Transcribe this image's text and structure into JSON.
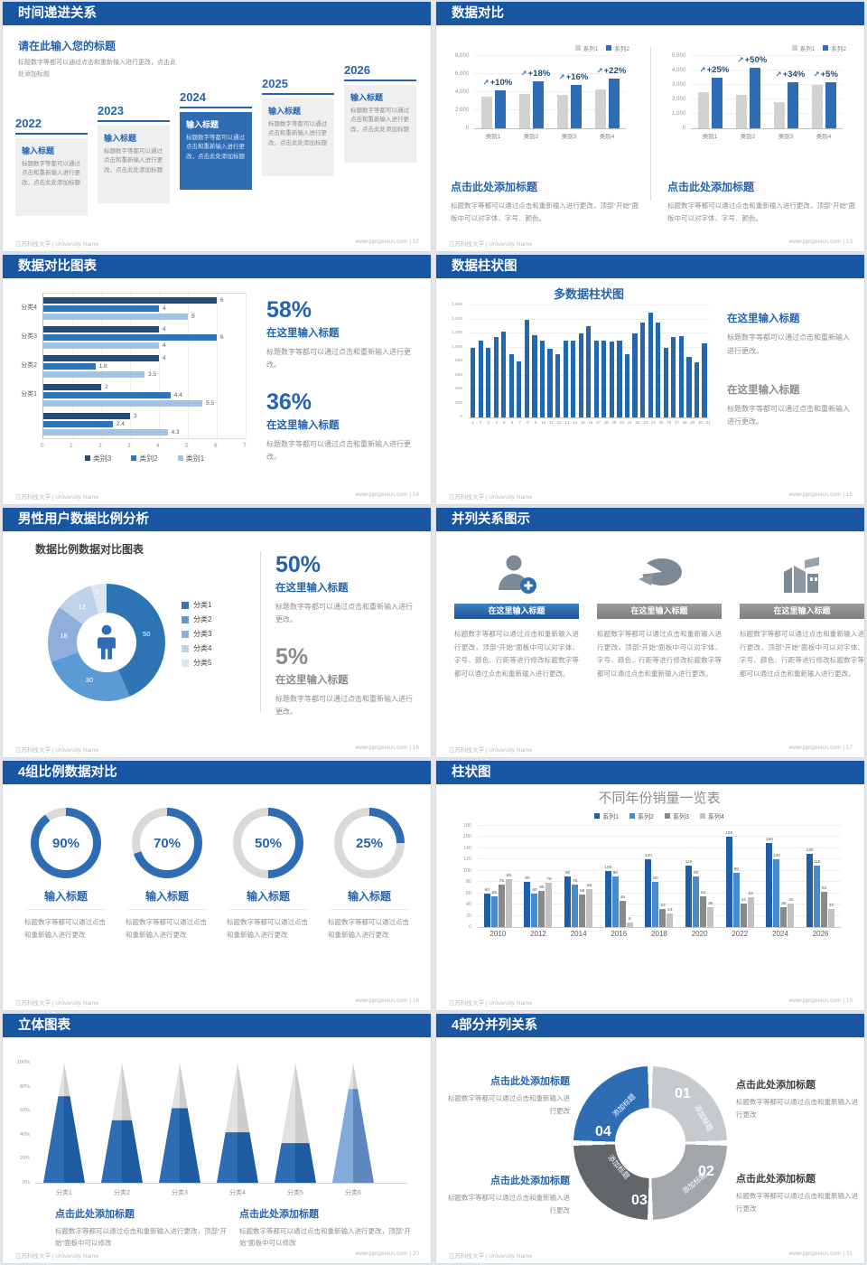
{
  "site": "www.pptgenius.com",
  "footer_left": "江苏科技大学 | University Name",
  "colors": {
    "header_bar": "#1856a2",
    "accent_blue": "#2e6db4",
    "title_blue": "#2563ad",
    "dark_navy": "#1f4e79",
    "bar_gray": "#d2d2d2",
    "text_gray": "#8f8f8f"
  },
  "slides": [
    {
      "title": "时间递进关系",
      "page": "12",
      "intro_title": "请在此输入您的标题",
      "intro_body": "标题数字等都可以通过点击和重新输入进行更改，点击此处添加标题",
      "card_title": "输入标题",
      "card_body": "标题数字等都可以通过点击和重新输入进行更改，点击此处添加标题",
      "years": [
        "2022",
        "2023",
        "2024",
        "2025",
        "2026"
      ],
      "highlight_year": "2024"
    },
    {
      "title": "数据对比",
      "page": "13",
      "block_heading": "点击此处添加标题",
      "block_body": "标题数字等都可以通过点击和重新输入进行更改，顶部“开始”面板中可以对字体、字号、颜色。"
    },
    {
      "title": "数据对比图表",
      "page": "14",
      "stats": [
        {
          "value": "58%",
          "heading": "在这里输入标题",
          "body": "标题数字等都可以通过点击和重新输入进行更改。",
          "muted": false
        },
        {
          "value": "36%",
          "heading": "在这里输入标题",
          "body": "标题数字等都可以通过点击和重新输入进行更改。",
          "muted": false
        }
      ]
    },
    {
      "title": "数据柱状图",
      "page": "15",
      "stats": [
        {
          "heading": "在这里输入标题",
          "body": "标题数字等都可以通过点击和重新输入进行更改。",
          "muted": false
        },
        {
          "heading": "在这里输入标题",
          "body": "标题数字等都可以通过点击和重新输入进行更改。",
          "muted": true
        }
      ]
    },
    {
      "title": "男性用户数据比例分析",
      "page": "16",
      "stats": [
        {
          "value": "50%",
          "heading": "在这里输入标题",
          "body": "标题数字等都可以通过点击和重新输入进行更改。",
          "muted": false
        },
        {
          "value": "5%",
          "heading": "在这里输入标题",
          "body": "标题数字等都可以通过点击和重新输入进行更改。",
          "muted": true
        }
      ]
    },
    {
      "title": "并列关系图示",
      "page": "17",
      "columns": [
        {
          "icon": "person-add-icon",
          "heading": "在这里输入标题",
          "highlight": true,
          "body": "标题数字等都可以通过点击和重新输入进行更改，顶部“开始”面板中可以对字体、字号、颜色、行距等进行修改标题数字等都可以通过点击和重新输入进行更改。"
        },
        {
          "icon": "pie-3d-icon",
          "heading": "在这里输入标题",
          "highlight": false,
          "body": "标题数字等都可以通过点击和重新输入进行更改，顶部“开始”面板中可以对字体、字号、颜色、行距等进行修改标题数字等都可以通过点击和重新输入进行更改。"
        },
        {
          "icon": "building-icon",
          "heading": "在这里输入标题",
          "highlight": false,
          "body": "标题数字等都可以通过点击和重新输入进行更改，顶部“开始”面板中可以对字体、字号、颜色、行距等进行修改标题数字等都可以通过点击和重新输入进行更改。"
        }
      ]
    },
    {
      "title": "4组比例数据对比",
      "page": "18",
      "item_heading": "输入标题",
      "item_body": "标题数字等都可以通过点击和重新输入进行更改"
    },
    {
      "title": "柱状图",
      "page": "19"
    },
    {
      "title": "立体图表",
      "page": "20",
      "blocks": [
        {
          "heading": "点击此处添加标题",
          "body": "标题数字等都可以通过点击和重新输入进行更改，顶部“开始”面板中可以修改"
        },
        {
          "heading": "点击此处添加标题",
          "body": "标题数字等都可以通过点击和重新输入进行更改，顶部“开始”面板中可以修改"
        }
      ]
    },
    {
      "title": "4部分并列关系",
      "page": "21",
      "blocks": [
        {
          "heading": "点击此处添加标题",
          "body": "标题数字等都可以通过点击和重新输入进行更改",
          "side": "left"
        },
        {
          "heading": "点击此处添加标题",
          "body": "标题数字等都可以通过点击和重新输入进行更改",
          "side": "right"
        },
        {
          "heading": "点击此处添加标题",
          "body": "标题数字等都可以通过点击和重新输入进行更改",
          "side": "left"
        },
        {
          "heading": "点击此处添加标题",
          "body": "标题数字等都可以通过点击和重新输入进行更改",
          "side": "right"
        }
      ]
    }
  ],
  "chart_data": [
    {
      "id": "compare-left",
      "type": "bar",
      "categories": [
        "类别1",
        "类别2",
        "类别3",
        "类别4"
      ],
      "series": [
        {
          "name": "系列1",
          "color": "#d2d2d2",
          "values": [
            3500,
            3800,
            3700,
            4300
          ]
        },
        {
          "name": "系列2",
          "color": "#2e6db4",
          "values": [
            4200,
            5200,
            4800,
            5500
          ]
        }
      ],
      "annotations": [
        "+10%",
        "+18%",
        "+16%",
        "+22%"
      ],
      "ylim": [
        0,
        8000
      ],
      "ytick_step": 2000,
      "legend_position": "top-right",
      "grid": true
    },
    {
      "id": "compare-right",
      "type": "bar",
      "categories": [
        "类别1",
        "类别2",
        "类别3",
        "类别4"
      ],
      "series": [
        {
          "name": "系列1",
          "color": "#d2d2d2",
          "values": [
            2500,
            2300,
            1800,
            3000
          ]
        },
        {
          "name": "系列2",
          "color": "#2e6db4",
          "values": [
            3500,
            4200,
            3200,
            3200
          ]
        }
      ],
      "annotations": [
        "+25%",
        "+50%",
        "+34%",
        "+5%"
      ],
      "ylim": [
        0,
        5000
      ],
      "ytick_step": 1000,
      "legend_position": "top-right",
      "grid": true
    },
    {
      "id": "horizontal-compare",
      "type": "bar",
      "orientation": "horizontal",
      "groups": [
        {
          "label": "分类4",
          "values": [
            6,
            4,
            5
          ]
        },
        {
          "label": "分类3",
          "values": [
            4,
            6,
            4
          ]
        },
        {
          "label": "分类2",
          "values": [
            4,
            1.8,
            3.5
          ]
        },
        {
          "label": "分类1",
          "values": [
            2,
            4.4,
            5.5
          ]
        },
        {
          "label": "",
          "values": [
            3,
            2.4,
            4.3
          ]
        }
      ],
      "series_names": [
        "类别3",
        "类别2",
        "类别1"
      ],
      "series_colors": [
        "#1f4e79",
        "#2e75b6",
        "#9dc3e6"
      ],
      "xlim": [
        0,
        7
      ],
      "xtick_step": 1,
      "legend_position": "bottom"
    },
    {
      "id": "multi-column",
      "type": "bar",
      "title": "多数据柱状图",
      "x": [
        1,
        2,
        3,
        4,
        5,
        6,
        7,
        8,
        9,
        10,
        11,
        12,
        13,
        14,
        15,
        16,
        17,
        18,
        19,
        20,
        21,
        22,
        23,
        24,
        25,
        26,
        27,
        28,
        29,
        30,
        31
      ],
      "values": [
        1000,
        1100,
        1000,
        1150,
        1220,
        900,
        800,
        1400,
        1180,
        1100,
        980,
        900,
        1100,
        1100,
        1200,
        1300,
        1100,
        1100,
        1080,
        1100,
        900,
        1200,
        1350,
        1500,
        1350,
        1000,
        1150,
        1160,
        860,
        790,
        1060
      ],
      "color": "#2368ae",
      "ylim": [
        0,
        1600
      ],
      "ytick_step": 200,
      "ytick_labels": [
        "0",
        "200",
        "400",
        "600",
        "800",
        "1,000",
        "1,200",
        "1,400",
        "1,600"
      ]
    },
    {
      "id": "male-user-donut",
      "type": "pie",
      "title": "数据比例数据对比图表",
      "labels": [
        "分类1",
        "分类2",
        "分类3",
        "分类4",
        "分类5"
      ],
      "values": [
        50,
        30,
        18,
        12,
        5
      ],
      "colors": [
        "#2e75b6",
        "#5b9bd5",
        "#8faedc",
        "#bdd3ea",
        "#dce6f2"
      ],
      "center_icon": "male-person-icon",
      "legend_position": "right"
    },
    {
      "id": "progress-rings",
      "type": "pie",
      "values": [
        90,
        70,
        50,
        25
      ],
      "unit": "%",
      "color": "#2e6db4",
      "track_color": "#d9d9d9"
    },
    {
      "id": "yearly-sales",
      "type": "bar",
      "title": "不同年份销量一览表",
      "categories": [
        "2010",
        "2012",
        "2014",
        "2016",
        "2018",
        "2020",
        "2022",
        "2024",
        "2026"
      ],
      "series": [
        {
          "name": "系列1",
          "color": "#1f5fa8",
          "values": [
            60,
            80,
            90,
            100,
            120,
            110,
            160,
            150,
            130
          ]
        },
        {
          "name": "系列2",
          "color": "#4a8ac9",
          "values": [
            55,
            60,
            75,
            90,
            80,
            90,
            96,
            120,
            110
          ]
        },
        {
          "name": "系列3",
          "color": "#898989",
          "values": [
            75,
            65,
            58,
            46,
            32,
            54,
            42,
            36,
            62
          ]
        },
        {
          "name": "系列4",
          "color": "#c2c2c2",
          "values": [
            85,
            78,
            68,
            8,
            24,
            36,
            53,
            42,
            32
          ]
        }
      ],
      "ylim": [
        0,
        180
      ],
      "ytick_step": 20,
      "legend_position": "top",
      "grid": true
    },
    {
      "id": "cone-chart",
      "type": "bar",
      "style": "3d-cone",
      "categories": [
        "分类1",
        "分类2",
        "分类3",
        "分类4",
        "分类5",
        "分类6"
      ],
      "values": [
        72,
        52,
        62,
        42,
        33,
        78
      ],
      "unit": "%",
      "ylim": [
        0,
        100
      ],
      "ytick_step": 20,
      "ytick_labels": [
        "0%",
        "20%",
        "40%",
        "60%",
        "80%",
        "100%"
      ],
      "cone_colors": [
        "#2e6db4",
        "#2e6db4",
        "#2e6db4",
        "#2e6db4",
        "#2e6db4",
        "#82abdc"
      ]
    },
    {
      "id": "cycle-4-parts",
      "type": "pie",
      "segments": [
        {
          "num": "01",
          "label": "添加标题",
          "color": "#c7cacd"
        },
        {
          "num": "02",
          "label": "添加标题",
          "color": "#a2a5a9"
        },
        {
          "num": "03",
          "label": "添加标题",
          "color": "#636669"
        },
        {
          "num": "04",
          "label": "添加标题",
          "color": "#2e6db4"
        }
      ]
    }
  ]
}
